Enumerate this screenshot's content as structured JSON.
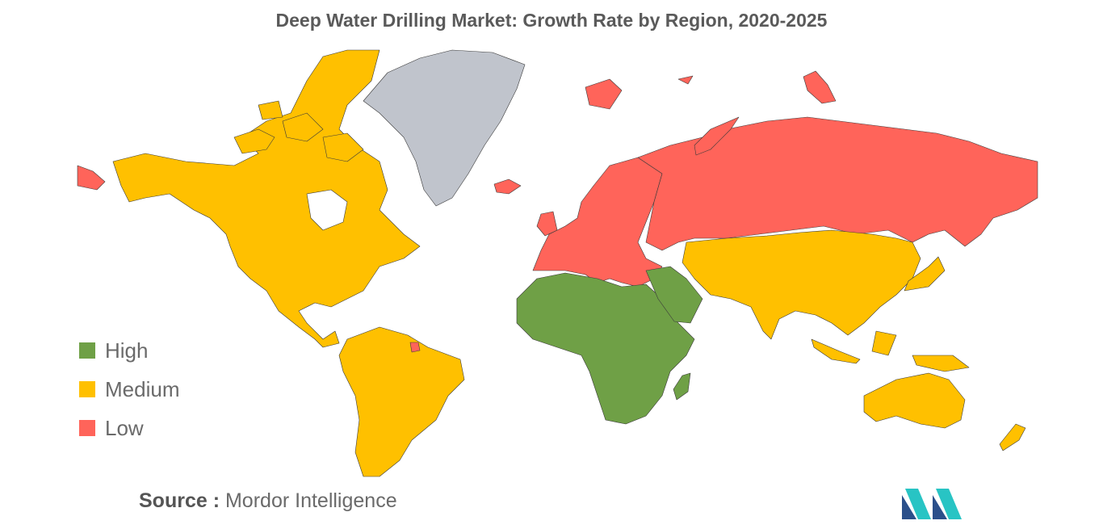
{
  "title": "Deep Water Drilling Market: Growth Rate by Region, 2020-2025",
  "legend": [
    {
      "label": "High",
      "color": "#6fa046"
    },
    {
      "label": "Medium",
      "color": "#ffc000"
    },
    {
      "label": "Low",
      "color": "#ff645a"
    }
  ],
  "regions": [
    {
      "name": "North America",
      "level": "Medium"
    },
    {
      "name": "South America",
      "level": "Medium"
    },
    {
      "name": "Europe",
      "level": "Low"
    },
    {
      "name": "Russia",
      "level": "Low"
    },
    {
      "name": "Africa",
      "level": "High"
    },
    {
      "name": "Middle East",
      "level": "High"
    },
    {
      "name": "Asia-Pacific",
      "level": "Medium"
    },
    {
      "name": "Australia",
      "level": "Medium"
    },
    {
      "name": "Greenland",
      "level": "No data"
    }
  ],
  "nodata_color": "#c0c4cc",
  "source": {
    "prefix": "Source :",
    "text": "Mordor Intelligence"
  }
}
